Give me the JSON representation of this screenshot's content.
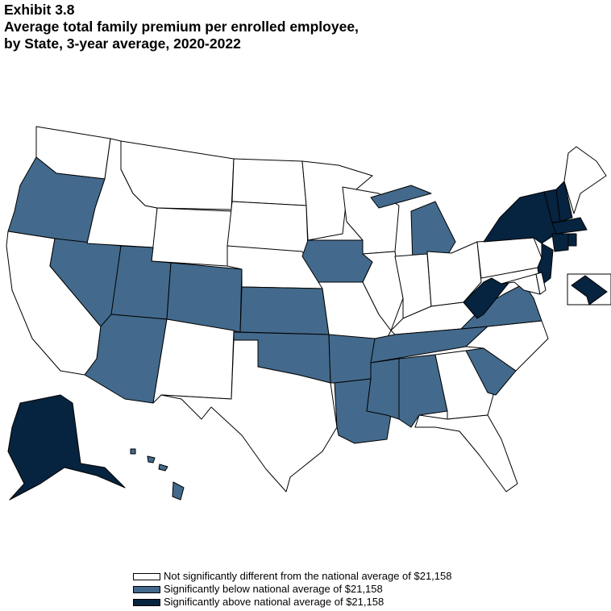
{
  "header": {
    "exhibit": "Exhibit 3.8",
    "title_line1": "Average total family premium per enrolled employee,",
    "title_line2": "by State, 3-year average, 2020-2022"
  },
  "colors": {
    "not_significant": "#ffffff",
    "below": "#436a8c",
    "above": "#06233f",
    "border": "#000000"
  },
  "legend": [
    {
      "key": "not_significant",
      "label": "Not significantly different from the national average of  $21,158"
    },
    {
      "key": "below",
      "label": "Significantly below national average of  $21,158"
    },
    {
      "key": "above",
      "label": "Significantly above national average of  $21,158"
    }
  ],
  "national_average": "$21,158",
  "states": {
    "WA": "not_significant",
    "OR": "below",
    "CA": "not_significant",
    "NV": "below",
    "ID": "not_significant",
    "MT": "not_significant",
    "WY": "not_significant",
    "UT": "below",
    "AZ": "below",
    "CO": "below",
    "NM": "not_significant",
    "ND": "not_significant",
    "SD": "not_significant",
    "NE": "not_significant",
    "KS": "below",
    "OK": "below",
    "TX": "not_significant",
    "MN": "not_significant",
    "IA": "below",
    "MO": "not_significant",
    "AR": "below",
    "LA": "below",
    "WI": "not_significant",
    "IL": "not_significant",
    "MI": "below",
    "IN": "not_significant",
    "OH": "not_significant",
    "KY": "not_significant",
    "TN": "below",
    "MS": "below",
    "AL": "below",
    "GA": "not_significant",
    "FL": "not_significant",
    "SC": "below",
    "NC": "not_significant",
    "VA": "below",
    "WV": "above",
    "PA": "not_significant",
    "NY": "above",
    "VT": "above",
    "NH": "above",
    "ME": "not_significant",
    "MA": "above",
    "CT": "above",
    "RI": "above",
    "NJ": "above",
    "MD": "not_significant",
    "DE": "not_significant",
    "DC": "above",
    "AK": "above",
    "HI": "below"
  }
}
